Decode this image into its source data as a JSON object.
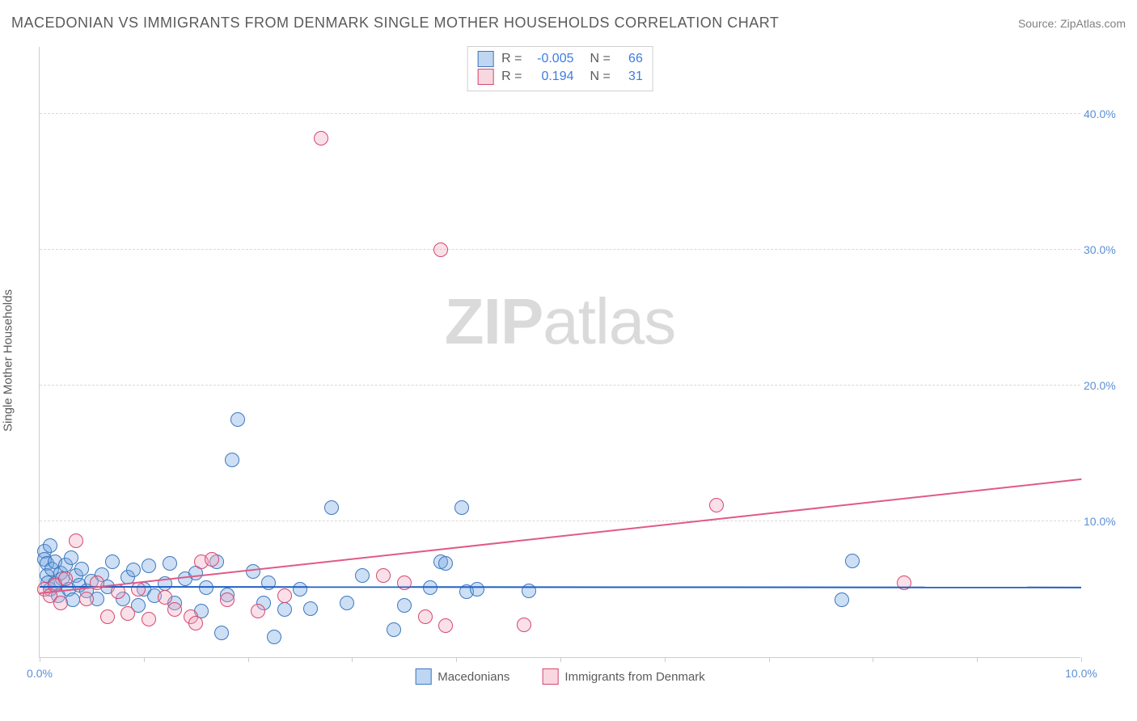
{
  "header": {
    "title": "MACEDONIAN VS IMMIGRANTS FROM DENMARK SINGLE MOTHER HOUSEHOLDS CORRELATION CHART",
    "source": "Source: ZipAtlas.com"
  },
  "watermark": {
    "part1": "ZIP",
    "part2": "atlas"
  },
  "ylabel": "Single Mother Households",
  "chart": {
    "type": "scatter",
    "background_color": "#ffffff",
    "grid_color": "#d8d8d8",
    "axis_color": "#cccccc",
    "label_color": "#5b5b5b",
    "tick_color": "#5b8fd6",
    "title_fontsize": 18,
    "label_fontsize": 15,
    "tick_fontsize": 14,
    "marker_radius": 9,
    "marker_border_width": 1,
    "marker_fill_opacity": 0.35,
    "xlim": [
      0,
      10
    ],
    "ylim": [
      0,
      45
    ],
    "ytick_positions": [
      10,
      20,
      30,
      40
    ],
    "ytick_labels": [
      "10.0%",
      "20.0%",
      "30.0%",
      "40.0%"
    ],
    "xtick_positions": [
      0,
      1,
      2,
      3,
      4,
      5,
      6,
      7,
      8,
      9,
      10
    ],
    "xtick_label_positions": [
      0,
      10
    ],
    "xtick_labels": [
      "0.0%",
      "10.0%"
    ],
    "series": [
      {
        "name": "Macedonians",
        "color": "#6fa3e0",
        "border_color": "#3e77bd",
        "r_label": "R =",
        "r_value": "-0.005",
        "n_label": "N =",
        "n_value": "66",
        "trend": {
          "x1": 0,
          "y1": 5.3,
          "x2": 10,
          "y2": 5.25,
          "width": 2,
          "color": "#1f5fc4"
        },
        "points": [
          [
            0.05,
            7.8
          ],
          [
            0.05,
            7.2
          ],
          [
            0.07,
            6.9
          ],
          [
            0.07,
            6.0
          ],
          [
            0.08,
            5.5
          ],
          [
            0.1,
            8.2
          ],
          [
            0.1,
            5.0
          ],
          [
            0.12,
            6.5
          ],
          [
            0.15,
            7.0
          ],
          [
            0.15,
            5.4
          ],
          [
            0.18,
            4.5
          ],
          [
            0.2,
            6.2
          ],
          [
            0.22,
            5.8
          ],
          [
            0.25,
            6.8
          ],
          [
            0.28,
            5.0
          ],
          [
            0.3,
            7.3
          ],
          [
            0.32,
            4.2
          ],
          [
            0.35,
            6.0
          ],
          [
            0.38,
            5.3
          ],
          [
            0.4,
            6.5
          ],
          [
            0.45,
            4.9
          ],
          [
            0.5,
            5.6
          ],
          [
            0.55,
            4.3
          ],
          [
            0.6,
            6.1
          ],
          [
            0.65,
            5.2
          ],
          [
            0.7,
            7.0
          ],
          [
            0.8,
            4.3
          ],
          [
            0.85,
            5.9
          ],
          [
            0.9,
            6.4
          ],
          [
            0.95,
            3.8
          ],
          [
            1.0,
            5.0
          ],
          [
            1.05,
            6.7
          ],
          [
            1.1,
            4.5
          ],
          [
            1.2,
            5.4
          ],
          [
            1.25,
            6.9
          ],
          [
            1.3,
            4.0
          ],
          [
            1.4,
            5.8
          ],
          [
            1.5,
            6.2
          ],
          [
            1.55,
            3.4
          ],
          [
            1.6,
            5.1
          ],
          [
            1.7,
            7.0
          ],
          [
            1.75,
            1.8
          ],
          [
            1.8,
            4.6
          ],
          [
            1.85,
            14.5
          ],
          [
            1.9,
            17.5
          ],
          [
            2.05,
            6.3
          ],
          [
            2.15,
            4.0
          ],
          [
            2.2,
            5.5
          ],
          [
            2.25,
            1.5
          ],
          [
            2.35,
            3.5
          ],
          [
            2.5,
            5.0
          ],
          [
            2.6,
            3.6
          ],
          [
            2.8,
            11.0
          ],
          [
            2.95,
            4.0
          ],
          [
            3.1,
            6.0
          ],
          [
            3.4,
            2.0
          ],
          [
            3.5,
            3.8
          ],
          [
            3.75,
            5.1
          ],
          [
            3.85,
            7.0
          ],
          [
            3.9,
            6.9
          ],
          [
            4.05,
            11.0
          ],
          [
            4.1,
            4.8
          ],
          [
            4.2,
            5.0
          ],
          [
            4.7,
            4.9
          ],
          [
            7.7,
            4.2
          ],
          [
            7.8,
            7.1
          ]
        ]
      },
      {
        "name": "Immigrants from Denmark",
        "color": "#f2a6bd",
        "border_color": "#d6486f",
        "r_label": "R =",
        "r_value": "0.194",
        "n_label": "N =",
        "n_value": "31",
        "trend": {
          "x1": 0,
          "y1": 4.8,
          "x2": 10,
          "y2": 13.2,
          "width": 2,
          "color": "#e05a85"
        },
        "points": [
          [
            0.05,
            5.0
          ],
          [
            0.1,
            4.5
          ],
          [
            0.15,
            5.3
          ],
          [
            0.2,
            4.0
          ],
          [
            0.25,
            5.8
          ],
          [
            0.35,
            8.6
          ],
          [
            0.45,
            4.3
          ],
          [
            0.55,
            5.5
          ],
          [
            0.65,
            3.0
          ],
          [
            0.75,
            4.8
          ],
          [
            0.85,
            3.2
          ],
          [
            0.95,
            5.0
          ],
          [
            1.05,
            2.8
          ],
          [
            1.2,
            4.4
          ],
          [
            1.3,
            3.5
          ],
          [
            1.45,
            3.0
          ],
          [
            1.5,
            2.5
          ],
          [
            1.55,
            7.0
          ],
          [
            1.65,
            7.2
          ],
          [
            1.8,
            4.2
          ],
          [
            2.1,
            3.4
          ],
          [
            2.35,
            4.5
          ],
          [
            2.7,
            38.2
          ],
          [
            3.3,
            6.0
          ],
          [
            3.5,
            5.5
          ],
          [
            3.7,
            3.0
          ],
          [
            3.85,
            30.0
          ],
          [
            3.9,
            2.3
          ],
          [
            4.65,
            2.4
          ],
          [
            6.5,
            11.2
          ],
          [
            8.3,
            5.5
          ]
        ]
      }
    ]
  },
  "legend": {
    "items": [
      {
        "label": "Macedonians",
        "color": "#6fa3e0",
        "border": "#3e77bd"
      },
      {
        "label": "Immigrants from Denmark",
        "color": "#f2a6bd",
        "border": "#d6486f"
      }
    ]
  }
}
